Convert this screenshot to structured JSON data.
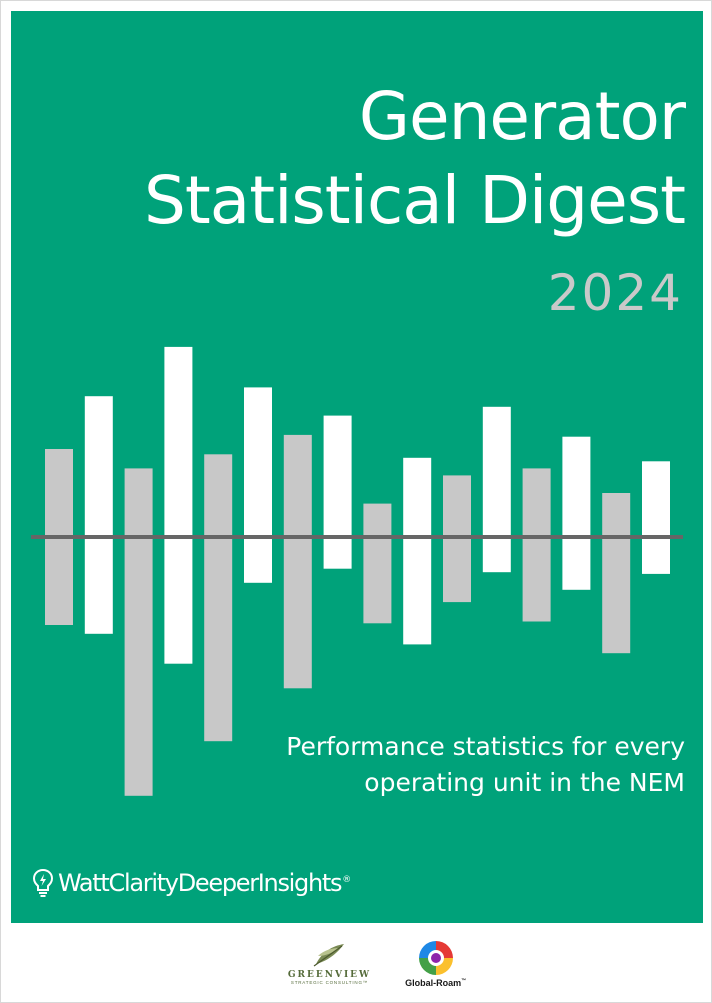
{
  "cover": {
    "title_line1": "Generator",
    "title_line2": "Statistical Digest",
    "year": "2024",
    "subtitle_line1": "Performance statistics for every",
    "subtitle_line2": "operating unit in the NEM",
    "background_color": "#00a27a",
    "bar_colors": [
      "#c8c8c8",
      "#ffffff"
    ],
    "baseline_color": "#666666"
  },
  "brand": {
    "icon": "lightbulb-icon",
    "text": "WattClarityDeeperInsights",
    "registered": "®"
  },
  "footer": {
    "greenview_name": "GREENVIEW",
    "greenview_tagline": "STRATEGIC CONSULTING™",
    "globalroam_name": "Global-Roam",
    "globalroam_mark": "™"
  },
  "decor_bars": [
    {
      "up": 1.0,
      "down": 1.0
    },
    {
      "up": 1.6,
      "down": 1.1
    },
    {
      "up": 0.78,
      "down": 2.94
    },
    {
      "up": 2.16,
      "down": 1.44
    },
    {
      "up": 0.94,
      "down": 2.32
    },
    {
      "up": 1.7,
      "down": 0.52
    },
    {
      "up": 1.16,
      "down": 1.72
    },
    {
      "up": 1.38,
      "down": 0.36
    },
    {
      "up": 0.38,
      "down": 0.98
    },
    {
      "up": 0.9,
      "down": 1.22
    },
    {
      "up": 0.7,
      "down": 0.74
    },
    {
      "up": 1.48,
      "down": 0.4
    },
    {
      "up": 0.78,
      "down": 0.96
    },
    {
      "up": 1.14,
      "down": 0.6
    },
    {
      "up": 0.5,
      "down": 1.32
    },
    {
      "up": 0.86,
      "down": 0.42
    }
  ]
}
